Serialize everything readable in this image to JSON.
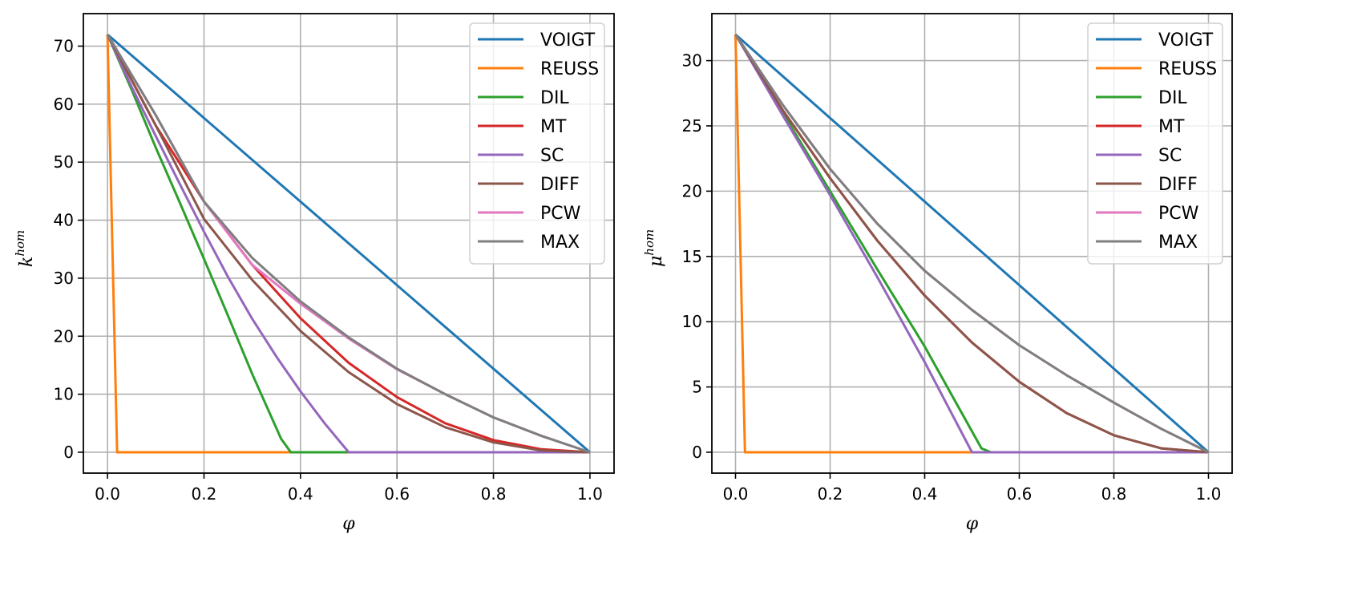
{
  "chart_data": [
    {
      "type": "line",
      "title": "",
      "xlabel": "φ",
      "ylabel": "k",
      "ylabel_superscript": "hom",
      "xlim": [
        -0.05,
        1.05
      ],
      "ylim": [
        -3.6,
        75.6
      ],
      "xticks": [
        0.0,
        0.2,
        0.4,
        0.6,
        0.8,
        1.0
      ],
      "xtick_labels": [
        "0.0",
        "0.2",
        "0.4",
        "0.6",
        "0.8",
        "1.0"
      ],
      "yticks": [
        0,
        10,
        20,
        30,
        40,
        50,
        60,
        70
      ],
      "ytick_labels": [
        "0",
        "10",
        "20",
        "30",
        "40",
        "50",
        "60",
        "70"
      ],
      "grid": true,
      "legend_position": "top-right",
      "series": [
        {
          "name": "VOIGT",
          "color": "#1f77b4",
          "x": [
            0,
            1
          ],
          "y": [
            72,
            0
          ]
        },
        {
          "name": "REUSS",
          "color": "#ff7f0e",
          "x": [
            0,
            0.02,
            0.04,
            0.1,
            0.2,
            0.3,
            0.38
          ],
          "y": [
            72,
            0,
            0,
            0,
            0,
            0,
            0
          ]
        },
        {
          "name": "DIL",
          "color": "#2ca02c",
          "x": [
            0,
            0.05,
            0.1,
            0.15,
            0.2,
            0.25,
            0.3,
            0.36,
            0.38,
            0.5
          ],
          "y": [
            72,
            62.5,
            52.5,
            43,
            33.3,
            23.5,
            13.5,
            2.3,
            0,
            0
          ]
        },
        {
          "name": "MT",
          "color": "#d62728",
          "x": [
            0,
            0.1,
            0.2,
            0.3,
            0.4,
            0.5,
            0.6,
            0.7,
            0.8,
            0.9,
            1.0
          ],
          "y": [
            72,
            56.3,
            43.2,
            32.3,
            23.1,
            15.4,
            9.5,
            5.0,
            2.1,
            0.5,
            0
          ]
        },
        {
          "name": "SC",
          "color": "#9467bd",
          "x": [
            0,
            0.05,
            0.1,
            0.15,
            0.2,
            0.25,
            0.3,
            0.35,
            0.4,
            0.45,
            0.5,
            0.6,
            0.8,
            1.0
          ],
          "y": [
            72,
            63,
            54.5,
            46.2,
            38.0,
            30.2,
            23.0,
            16.5,
            10.5,
            5.0,
            0,
            0,
            0,
            0
          ]
        },
        {
          "name": "DIFF",
          "color": "#8c564b",
          "x": [
            0,
            0.1,
            0.2,
            0.3,
            0.4,
            0.5,
            0.6,
            0.7,
            0.8,
            0.9,
            1.0
          ],
          "y": [
            72,
            56.3,
            40.2,
            29.7,
            20.9,
            13.8,
            8.3,
            4.3,
            1.7,
            0.3,
            0
          ]
        },
        {
          "name": "PCW",
          "color": "#e377c2",
          "x": [
            0,
            0.1,
            0.2,
            0.3,
            0.4,
            0.5,
            0.6,
            0.7,
            0.8,
            0.9,
            1.0
          ],
          "y": [
            72,
            58.1,
            43.2,
            32.3,
            25.6,
            19.6,
            14.3,
            10.0,
            6.0,
            2.8,
            0
          ]
        },
        {
          "name": "MAX",
          "color": "#7f7f7f",
          "x": [
            0,
            0.1,
            0.2,
            0.3,
            0.4,
            0.5,
            0.6,
            0.7,
            0.8,
            0.9,
            1.0
          ],
          "y": [
            72,
            58.1,
            43.2,
            33.5,
            26.0,
            19.8,
            14.4,
            10.0,
            6.0,
            2.8,
            0
          ]
        }
      ]
    },
    {
      "type": "line",
      "title": "",
      "xlabel": "φ",
      "ylabel": "μ",
      "ylabel_superscript": "hom",
      "xlim": [
        -0.05,
        1.05
      ],
      "ylim": [
        -1.6,
        33.6
      ],
      "xticks": [
        0.0,
        0.2,
        0.4,
        0.6,
        0.8,
        1.0
      ],
      "xtick_labels": [
        "0.0",
        "0.2",
        "0.4",
        "0.6",
        "0.8",
        "1.0"
      ],
      "yticks": [
        0,
        5,
        10,
        15,
        20,
        25,
        30
      ],
      "ytick_labels": [
        "0",
        "5",
        "10",
        "15",
        "20",
        "25",
        "30"
      ],
      "grid": true,
      "legend_position": "top-right",
      "series": [
        {
          "name": "VOIGT",
          "color": "#1f77b4",
          "x": [
            0,
            1
          ],
          "y": [
            32,
            0
          ]
        },
        {
          "name": "REUSS",
          "color": "#ff7f0e",
          "x": [
            0,
            0.02,
            0.1,
            0.3,
            0.5
          ],
          "y": [
            32,
            0,
            0,
            0,
            0
          ]
        },
        {
          "name": "DIL",
          "color": "#2ca02c",
          "x": [
            0,
            0.1,
            0.2,
            0.3,
            0.4,
            0.52,
            0.54,
            0.6
          ],
          "y": [
            32,
            26.0,
            20.0,
            14.0,
            8.1,
            0.3,
            0,
            0
          ]
        },
        {
          "name": "MT",
          "color": "#d62728",
          "x": [
            0,
            0.1,
            0.2,
            0.3,
            0.4,
            0.5,
            0.6,
            0.7,
            0.8,
            0.9,
            1.0
          ],
          "y": [
            32,
            26.2,
            21.0,
            16.2,
            12.0,
            8.4,
            5.4,
            3.0,
            1.3,
            0.3,
            0
          ]
        },
        {
          "name": "SC",
          "color": "#9467bd",
          "x": [
            0,
            0.1,
            0.2,
            0.3,
            0.4,
            0.5,
            0.6,
            0.8,
            1.0
          ],
          "y": [
            32,
            25.8,
            19.7,
            13.4,
            6.9,
            0,
            0,
            0,
            0
          ]
        },
        {
          "name": "DIFF",
          "color": "#8c564b",
          "x": [
            0,
            0.1,
            0.2,
            0.3,
            0.4,
            0.5,
            0.6,
            0.7,
            0.8,
            0.9,
            1.0
          ],
          "y": [
            32,
            26.2,
            21.0,
            16.2,
            12.0,
            8.4,
            5.4,
            3.0,
            1.3,
            0.3,
            0
          ]
        },
        {
          "name": "PCW",
          "color": "#e377c2",
          "x": [
            0,
            0.1,
            0.2,
            0.3,
            0.4,
            0.5,
            0.6,
            0.7,
            0.8,
            0.9,
            1.0
          ],
          "y": [
            32,
            26.6,
            21.7,
            17.5,
            13.9,
            10.9,
            8.2,
            5.9,
            3.8,
            1.8,
            0
          ]
        },
        {
          "name": "MAX",
          "color": "#7f7f7f",
          "x": [
            0,
            0.1,
            0.2,
            0.3,
            0.4,
            0.5,
            0.6,
            0.7,
            0.8,
            0.9,
            1.0
          ],
          "y": [
            32,
            26.6,
            21.7,
            17.5,
            13.9,
            10.9,
            8.2,
            5.9,
            3.8,
            1.8,
            0
          ]
        }
      ]
    }
  ]
}
